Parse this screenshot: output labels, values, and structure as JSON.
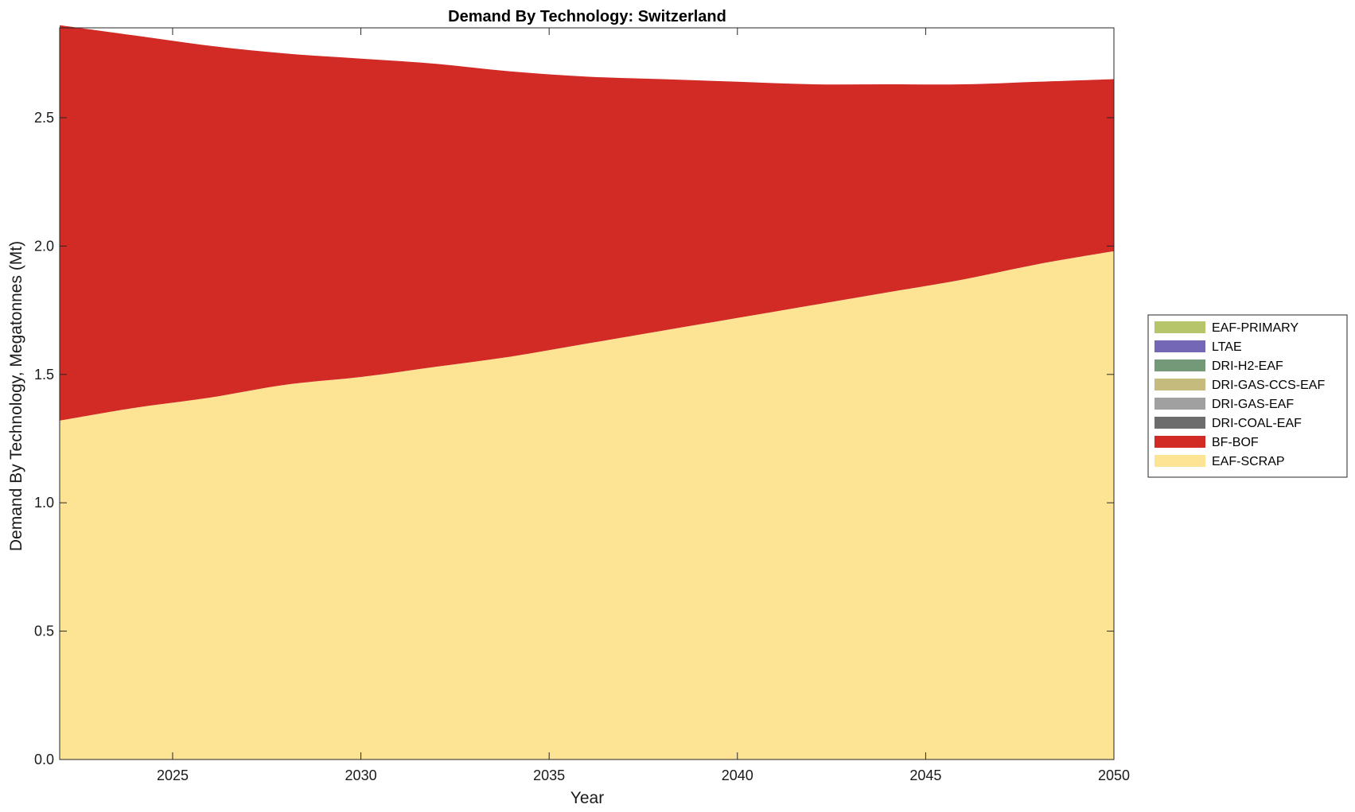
{
  "chart_data": {
    "type": "area",
    "stacked": true,
    "title": "Demand By Technology: Switzerland",
    "xlabel": "Year",
    "ylabel": "Demand By Technology, Megatonnes (Mt)",
    "xlim": [
      2022,
      2050
    ],
    "ylim": [
      0,
      2.85
    ],
    "xticks": [
      "2025",
      "2030",
      "2035",
      "2040",
      "2045",
      "2050"
    ],
    "yticks": [
      "0.0",
      "0.5",
      "1.0",
      "1.5",
      "2.0",
      "2.5"
    ],
    "grid": false,
    "legend_position": "right",
    "x": [
      2022,
      2024,
      2026,
      2028,
      2030,
      2032,
      2034,
      2036,
      2038,
      2040,
      2042,
      2044,
      2046,
      2048,
      2050
    ],
    "series": [
      {
        "name": "EAF-SCRAP",
        "color": "#fde495",
        "values": [
          1.32,
          1.37,
          1.41,
          1.46,
          1.49,
          1.53,
          1.57,
          1.62,
          1.67,
          1.72,
          1.77,
          1.82,
          1.87,
          1.93,
          1.98
        ]
      },
      {
        "name": "BF-BOF",
        "color": "#d22a25",
        "values": [
          1.54,
          1.45,
          1.37,
          1.29,
          1.24,
          1.18,
          1.11,
          1.04,
          0.98,
          0.92,
          0.86,
          0.81,
          0.76,
          0.71,
          0.67
        ]
      },
      {
        "name": "DRI-COAL-EAF",
        "color": "#6c6c6c",
        "values": [
          0,
          0,
          0,
          0,
          0,
          0,
          0,
          0,
          0,
          0,
          0,
          0,
          0,
          0,
          0
        ]
      },
      {
        "name": "DRI-GAS-EAF",
        "color": "#a0a0a0",
        "values": [
          0,
          0,
          0,
          0,
          0,
          0,
          0,
          0,
          0,
          0,
          0,
          0,
          0,
          0,
          0
        ]
      },
      {
        "name": "DRI-GAS-CCS-EAF",
        "color": "#c4bb7c",
        "values": [
          0,
          0,
          0,
          0,
          0,
          0,
          0,
          0,
          0,
          0,
          0,
          0,
          0,
          0,
          0
        ]
      },
      {
        "name": "DRI-H2-EAF",
        "color": "#739979",
        "values": [
          0,
          0,
          0,
          0,
          0,
          0,
          0,
          0,
          0,
          0,
          0,
          0,
          0,
          0,
          0
        ]
      },
      {
        "name": "LTAE",
        "color": "#7367b6",
        "values": [
          0,
          0,
          0,
          0,
          0,
          0,
          0,
          0,
          0,
          0,
          0,
          0,
          0,
          0,
          0
        ]
      },
      {
        "name": "EAF-PRIMARY",
        "color": "#b6c46a",
        "values": [
          0,
          0,
          0,
          0,
          0,
          0,
          0,
          0,
          0,
          0,
          0,
          0,
          0,
          0,
          0
        ]
      }
    ]
  }
}
